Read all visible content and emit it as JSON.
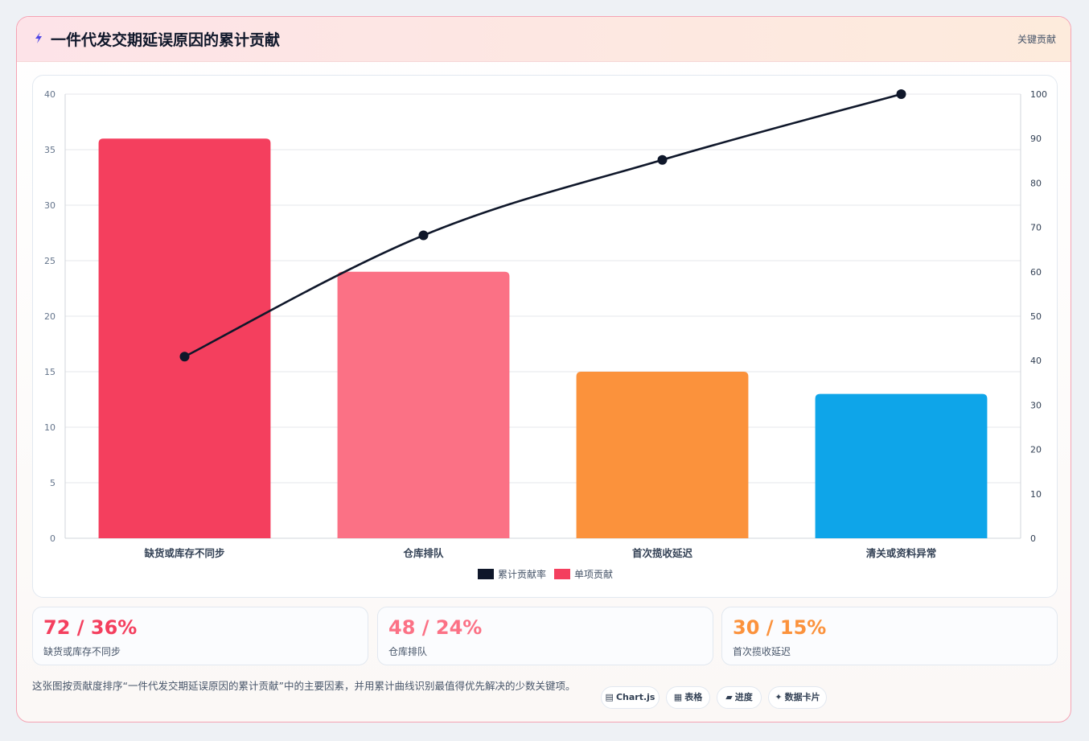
{
  "header": {
    "title": "一件代发交期延误原因的累计贡献",
    "tag": "关键贡献",
    "bolt_color": "#4f46e5"
  },
  "chart_data": {
    "type": "bar",
    "categories": [
      "缺货或库存不同步",
      "仓库排队",
      "首次揽收延迟",
      "清关或资料异常"
    ],
    "series": [
      {
        "name": "单项贡献",
        "type": "bar",
        "axis": "left",
        "values": [
          36,
          24,
          15,
          13
        ],
        "colors": [
          "#f43f5e",
          "#fb7185",
          "#fb923c",
          "#0ea5e9"
        ]
      },
      {
        "name": "累计贡献率",
        "type": "line",
        "axis": "right",
        "values": [
          40.9,
          68.2,
          85.2,
          100
        ],
        "color": "#0f172a"
      }
    ],
    "y_left": {
      "min": 0,
      "max": 40,
      "ticks": [
        0,
        5,
        10,
        15,
        20,
        25,
        30,
        35,
        40
      ]
    },
    "y_right": {
      "min": 0,
      "max": 100,
      "ticks": [
        0,
        10,
        20,
        30,
        40,
        50,
        60,
        70,
        80,
        90,
        100
      ]
    },
    "legend": [
      {
        "label": "累计贡献率",
        "color": "#0f172a"
      },
      {
        "label": "单项贡献",
        "color": "#f43f5e"
      }
    ],
    "legend_position": "bottom",
    "grid": true
  },
  "kpis": [
    {
      "value": "72 / 36%",
      "label": "缺货或库存不同步",
      "color": "#f43f5e"
    },
    {
      "value": "48 / 24%",
      "label": "仓库排队",
      "color": "#fb7185"
    },
    {
      "value": "30 / 15%",
      "label": "首次揽收延迟",
      "color": "#fb923c"
    }
  ],
  "footnote": "这张图按贡献度排序“一件代发交期延误原因的累计贡献”中的主要因素，并用累计曲线识别最值得优先解决的少数关键项。",
  "chips": [
    {
      "icon": "▤",
      "label": "Chart.js"
    },
    {
      "icon": "▦",
      "label": "表格"
    },
    {
      "icon": "▰",
      "label": "进度"
    },
    {
      "icon": "✦",
      "label": "数据卡片"
    }
  ]
}
